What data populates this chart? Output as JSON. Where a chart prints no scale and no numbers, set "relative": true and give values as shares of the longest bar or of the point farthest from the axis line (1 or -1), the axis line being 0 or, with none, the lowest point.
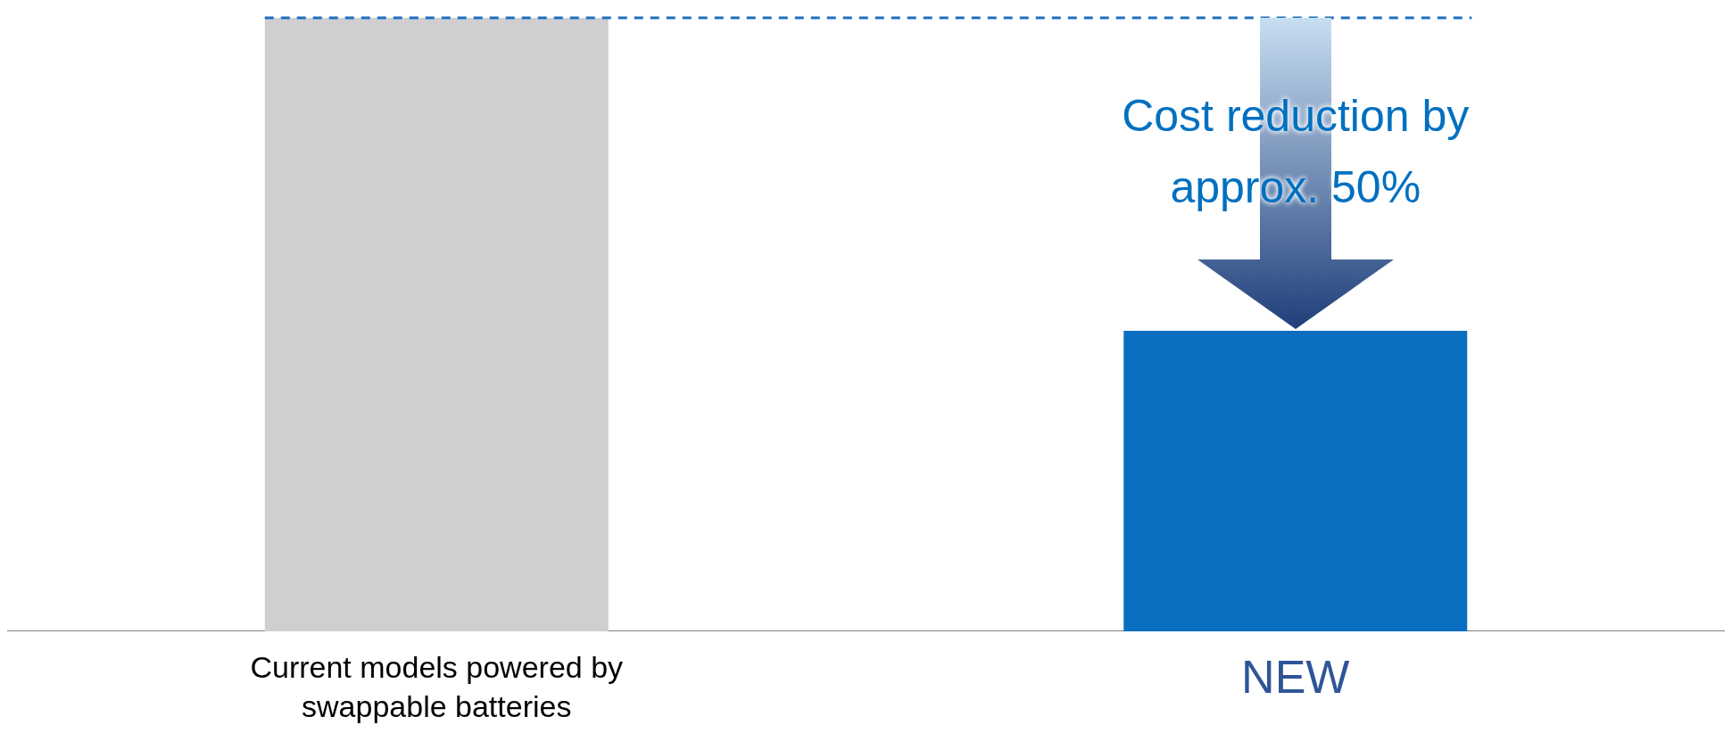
{
  "chart_data": {
    "type": "bar",
    "relative": true,
    "categories": [
      "Current models powered by swappable batteries",
      "NEW"
    ],
    "values": [
      1,
      0.49
    ],
    "colors": [
      "#cfcfcf",
      "#0a6fc0"
    ],
    "ref_lines": [
      {
        "axis": "y",
        "value": 1,
        "color": "#1f6fbf",
        "line_style": "dashed"
      }
    ],
    "annotations": [
      "Cost reduction by approx. 50%"
    ],
    "grid": false,
    "legend": false
  }
}
